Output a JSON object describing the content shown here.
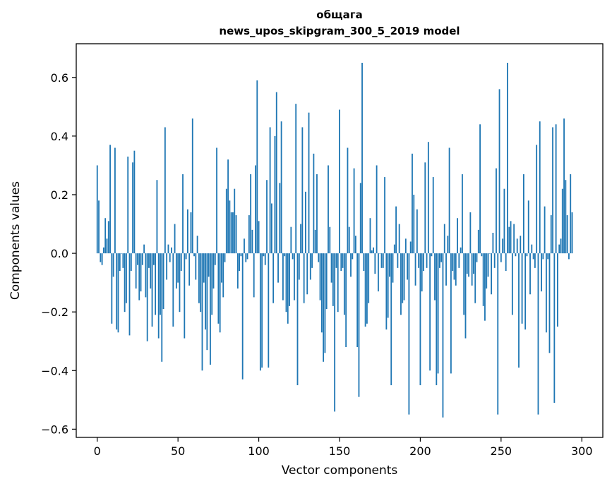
{
  "chart_data": {
    "type": "bar",
    "title": "общага",
    "subtitle": "news_upos_skipgram_300_5_2019 model",
    "xlabel": "Vector components",
    "ylabel": "Components values",
    "xlim": [
      -13,
      313
    ],
    "ylim": [
      -0.628,
      0.715
    ],
    "x_ticks": [
      0,
      50,
      100,
      150,
      200,
      250,
      300
    ],
    "x_tick_labels": [
      "0",
      "50",
      "100",
      "150",
      "200",
      "250",
      "300"
    ],
    "y_ticks": [
      -0.6,
      -0.4,
      -0.2,
      0.0,
      0.2,
      0.4,
      0.6
    ],
    "y_tick_labels": [
      "−0.6",
      "−0.4",
      "−0.2",
      "0.0",
      "0.2",
      "0.4",
      "0.6"
    ],
    "grid": false,
    "bar_color": "#1f77b4",
    "values": [
      0.3,
      0.18,
      -0.03,
      -0.04,
      0.02,
      0.12,
      0.05,
      0.11,
      0.37,
      -0.24,
      -0.08,
      0.36,
      -0.26,
      -0.27,
      -0.06,
      0.0,
      -0.05,
      -0.2,
      -0.17,
      0.33,
      -0.28,
      -0.06,
      0.31,
      0.35,
      -0.12,
      -0.04,
      -0.16,
      -0.13,
      -0.04,
      0.03,
      -0.15,
      -0.3,
      -0.05,
      -0.12,
      -0.25,
      -0.04,
      -0.21,
      0.25,
      -0.29,
      -0.21,
      -0.37,
      -0.19,
      0.43,
      -0.09,
      0.03,
      -0.03,
      0.02,
      -0.25,
      0.1,
      -0.12,
      -0.1,
      -0.2,
      -0.06,
      0.27,
      -0.29,
      -0.02,
      0.15,
      -0.11,
      0.14,
      0.46,
      -0.01,
      -0.09,
      0.06,
      -0.17,
      -0.2,
      -0.4,
      -0.1,
      -0.26,
      -0.33,
      -0.08,
      -0.38,
      -0.21,
      -0.12,
      -0.04,
      0.36,
      -0.24,
      -0.27,
      -0.1,
      -0.15,
      -0.03,
      0.22,
      0.32,
      0.18,
      0.14,
      0.14,
      0.22,
      0.13,
      -0.12,
      -0.06,
      -0.01,
      -0.43,
      0.05,
      -0.03,
      -0.02,
      0.13,
      0.27,
      0.08,
      -0.15,
      0.3,
      0.59,
      0.11,
      -0.4,
      -0.39,
      -0.01,
      -0.04,
      0.25,
      -0.39,
      0.43,
      0.17,
      -0.17,
      0.4,
      0.55,
      -0.1,
      0.24,
      0.45,
      -0.16,
      -0.01,
      -0.2,
      -0.24,
      -0.18,
      0.09,
      -0.02,
      -0.16,
      0.51,
      -0.45,
      -0.09,
      0.1,
      0.43,
      -0.17,
      0.21,
      -0.14,
      0.48,
      -0.09,
      -0.05,
      0.34,
      0.08,
      0.27,
      -0.03,
      -0.16,
      -0.27,
      -0.37,
      -0.34,
      -0.19,
      0.3,
      0.09,
      -0.1,
      -0.18,
      -0.54,
      -0.05,
      -0.2,
      0.49,
      -0.06,
      -0.05,
      -0.21,
      -0.32,
      0.36,
      0.09,
      -0.08,
      -0.02,
      0.29,
      0.06,
      -0.32,
      -0.49,
      0.24,
      0.65,
      -0.06,
      -0.25,
      -0.24,
      -0.17,
      0.12,
      0.01,
      0.02,
      -0.07,
      0.3,
      -0.13,
      0.0,
      -0.05,
      -0.05,
      0.26,
      -0.26,
      -0.22,
      -0.08,
      -0.45,
      -0.1,
      0.03,
      0.16,
      -0.05,
      0.1,
      -0.21,
      -0.17,
      -0.16,
      0.05,
      -0.09,
      -0.55,
      0.04,
      0.34,
      0.2,
      -0.11,
      0.15,
      -0.05,
      -0.45,
      -0.13,
      -0.06,
      0.31,
      -0.05,
      0.38,
      -0.4,
      -0.01,
      0.26,
      -0.16,
      -0.45,
      -0.41,
      -0.05,
      -0.03,
      -0.56,
      0.1,
      -0.11,
      0.06,
      0.36,
      -0.41,
      -0.06,
      -0.09,
      -0.11,
      0.12,
      -0.05,
      0.02,
      0.27,
      -0.21,
      -0.29,
      -0.07,
      -0.08,
      0.14,
      -0.11,
      -0.07,
      -0.17,
      -0.03,
      0.08,
      0.44,
      -0.01,
      -0.18,
      -0.23,
      -0.12,
      -0.08,
      0.0,
      -0.14,
      0.07,
      -0.05,
      0.29,
      -0.55,
      0.56,
      -0.03,
      0.05,
      0.22,
      -0.06,
      0.65,
      0.09,
      0.11,
      -0.21,
      0.1,
      -0.01,
      0.05,
      -0.39,
      0.06,
      -0.24,
      0.27,
      -0.26,
      -0.01,
      0.18,
      -0.14,
      0.03,
      -0.02,
      -0.05,
      0.37,
      -0.55,
      0.45,
      -0.13,
      -0.02,
      0.16,
      -0.27,
      -0.02,
      -0.34,
      0.13,
      0.43,
      -0.51,
      0.44,
      -0.25,
      0.03,
      0.05,
      0.22,
      0.46,
      0.25,
      0.13,
      -0.02,
      0.27,
      0.14
    ]
  }
}
